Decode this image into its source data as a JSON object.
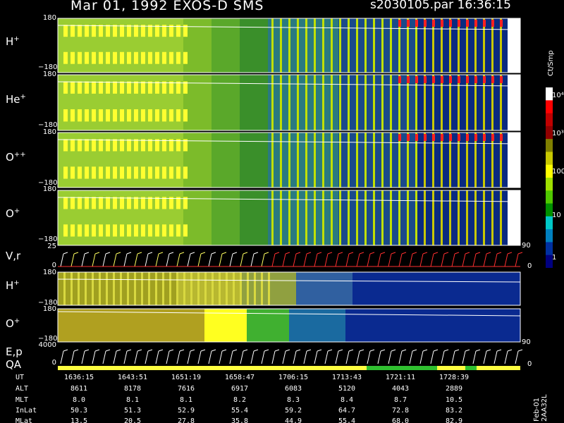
{
  "header": {
    "title": "Mar 01, 1992   EXOS-D SMS",
    "file": "s2030105.par  16:36:15"
  },
  "panels": [
    {
      "label": "H",
      "sup": "+",
      "y_top": "180",
      "y_bot": "−180",
      "kind": "angle"
    },
    {
      "label": "He",
      "sup": "+",
      "y_top": "180",
      "y_bot": "−180",
      "kind": "angle"
    },
    {
      "label": "O",
      "sup": "++",
      "y_top": "180",
      "y_bot": "−180",
      "kind": "angle"
    },
    {
      "label": "O",
      "sup": "+",
      "y_top": "180",
      "y_bot": "−180",
      "kind": "angle"
    },
    {
      "label": "V,r",
      "sup": "",
      "y_top": "25",
      "y_bot": "0",
      "kind": "line"
    },
    {
      "label": "H",
      "sup": "+",
      "y_top": "180",
      "y_bot": "−180",
      "kind": "angle2"
    },
    {
      "label": "O",
      "sup": "+",
      "y_top": "180",
      "y_bot": "−180",
      "kind": "angle2"
    },
    {
      "label": "E,p",
      "sup": "",
      "y_top": "4000",
      "y_bot": "0",
      "kind": "line2"
    }
  ],
  "qa_label": "QA",
  "right_ticks": {
    "vr_top": "90",
    "vr_bot": "0",
    "ep_top": "90",
    "ep_bot": "0"
  },
  "colorbar": {
    "unit": "Ct/Smp",
    "ticks": [
      "10⁴",
      "10³",
      "100",
      "10",
      "1"
    ],
    "colors": [
      "#ffffff",
      "#ff0000",
      "#c00000",
      "#900000",
      "#808000",
      "#c8c800",
      "#ffff00",
      "#a0e000",
      "#50c800",
      "#009000",
      "#00c8c8",
      "#0080c0",
      "#0030a0",
      "#000080"
    ]
  },
  "ephemeris": {
    "labels": [
      "UT",
      "ALT",
      "MLT",
      "InLat",
      "MLat"
    ],
    "columns": [
      [
        "1636:15",
        "8611",
        "8.0",
        "50.3",
        "13.5"
      ],
      [
        "1643:51",
        "8178",
        "8.1",
        "51.3",
        "20.5"
      ],
      [
        "1651:19",
        "7616",
        "8.1",
        "52.9",
        "27.8"
      ],
      [
        "1658:47",
        "6917",
        "8.2",
        "55.4",
        "35.8"
      ],
      [
        "1706:15",
        "6083",
        "8.3",
        "59.2",
        "44.9"
      ],
      [
        "1713:43",
        "5120",
        "8.4",
        "64.7",
        "55.4"
      ],
      [
        "1721:11",
        "4043",
        "8.7",
        "72.8",
        "68.0"
      ],
      [
        "1728:39",
        "2889",
        "10.5",
        "83.2",
        "82.9"
      ]
    ]
  },
  "date_tag": "Feb-01 2AA32L",
  "colors": {
    "background": "#000000",
    "frame": "#ffffff"
  }
}
